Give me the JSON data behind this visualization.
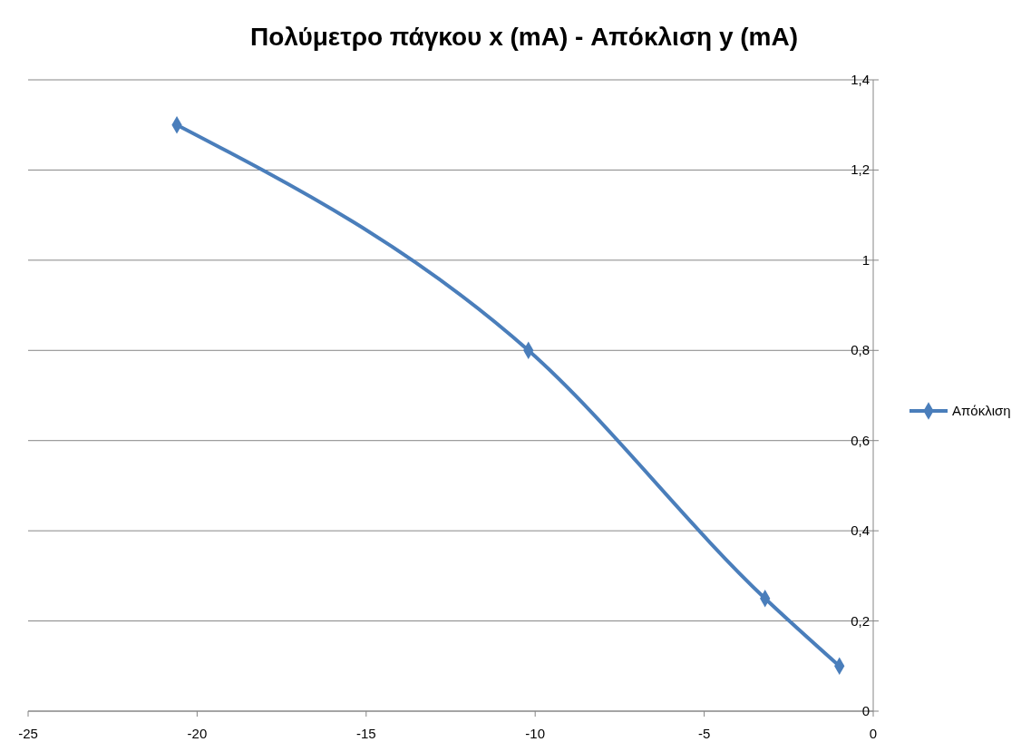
{
  "chart_data": {
    "type": "line",
    "title": "Πολύμετρο πάγκου x (mA) - Απόκλιση y (mA)",
    "x": [
      -20.6,
      -10.2,
      -3.2,
      -1
    ],
    "series": [
      {
        "name": "Απόκλιση",
        "color": "#4a7ebb",
        "values": [
          1.3,
          0.8,
          0.25,
          0.1
        ]
      }
    ],
    "xlim": [
      -25,
      0
    ],
    "xticks": [
      -25,
      -20,
      -15,
      -10,
      -5,
      0
    ],
    "ylim": [
      0,
      1.4
    ],
    "yticks": [
      0,
      {
        "value": 0.2,
        "label": "0,2"
      },
      {
        "value": 0.4,
        "label": "0,4"
      },
      {
        "value": 0.6,
        "label": "0,6"
      },
      {
        "value": 0.8,
        "label": "0,8"
      },
      1,
      {
        "value": 1.2,
        "label": "1,2"
      },
      {
        "value": 1.4,
        "label": "1,4"
      }
    ],
    "grid": "y",
    "legend": "right",
    "marker": "diamond",
    "line_style": "solid"
  }
}
